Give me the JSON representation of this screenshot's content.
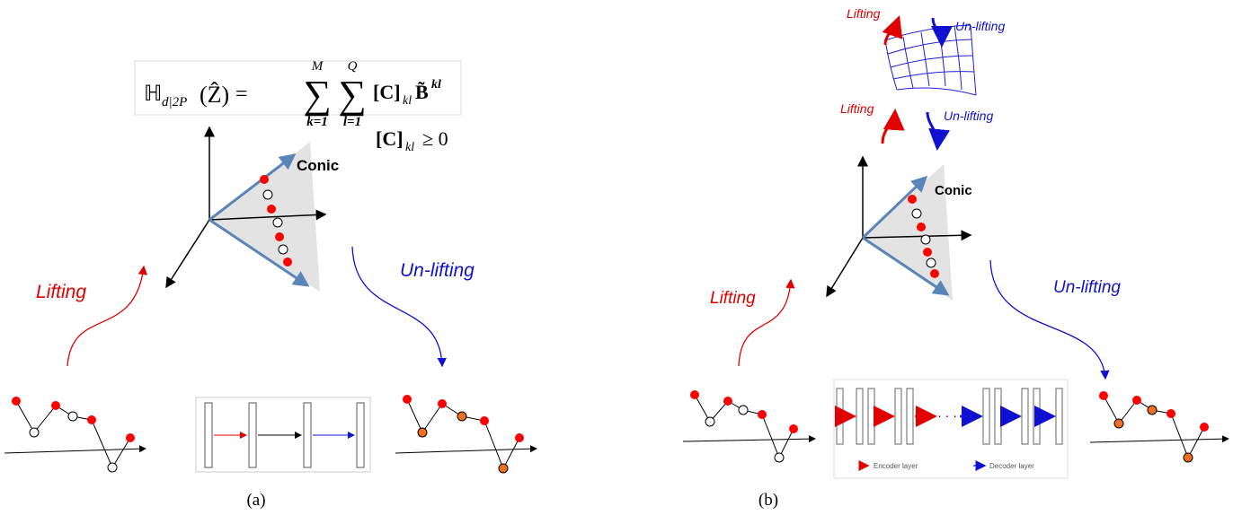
{
  "panel_a": {
    "formula": {
      "lhs": "ℍ",
      "lhs_sub": "d|2P",
      "arg": "(Ẑ)",
      "eq": "=",
      "sigma": "∑",
      "sum1_top": "M",
      "sum1_bottom": "k=1",
      "sum2_top": "Q",
      "sum2_bottom": "l=1",
      "term": "[C]",
      "term_sub": "kl",
      "term2": "B̃",
      "term2_sup": "kl",
      "constraint": "[C]",
      "constraint_sub": "kl",
      "constraint_rel": "≥ 0"
    },
    "conic": "Conic",
    "lifting": "Lifting",
    "unlifting": "Un-lifting",
    "caption": "(a)"
  },
  "panel_b": {
    "top_lifting": [
      "Lifting",
      "Lifting"
    ],
    "top_unlifting": [
      "Un-lifting",
      "Un-lifting"
    ],
    "conic": "Conic",
    "lifting": "Lifting",
    "unlifting": "Un-lifting",
    "ellipsis": "· · ·",
    "encoder_legend": "Encoder layer",
    "decoder_legend": "Decoder layer",
    "caption": "(b)"
  }
}
